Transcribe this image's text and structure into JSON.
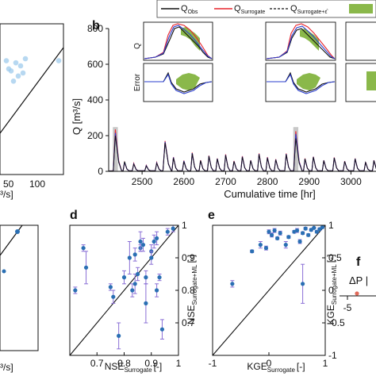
{
  "colors": {
    "obs": "#111111",
    "surrogate": "#e8242c",
    "surrogate_ml": "#2b3fcf",
    "error_band": "#8ab84a",
    "highlight": "#c8c8c8",
    "scatter_a": "#9fcbec",
    "point_blue": "#2a6fb3",
    "errorbar": "#8a6fd6",
    "point_red": "#e06a5a"
  },
  "legend": {
    "items": [
      {
        "label": "Q",
        "sub": "Obs",
        "style": "solid",
        "color_key": "obs"
      },
      {
        "label": "Q",
        "sub": "Surrogate",
        "style": "solid",
        "color_key": "surrogate"
      },
      {
        "label": "Q",
        "sub": "Surrogate+ε̂",
        "style": "dashed",
        "color_key": "obs"
      },
      {
        "label": "",
        "sub": "",
        "style": "patch",
        "color_key": "error_band"
      }
    ]
  },
  "panels": {
    "a": {
      "ylabel_partial": "...",
      "xticks": [
        "50",
        "100"
      ],
      "xlabel_partial": "³/s]"
    },
    "b": {
      "label": "b",
      "ylabel": "Q [m³/s]",
      "xlabel": "Cumulative time [hr]",
      "yticks": [
        "0",
        "200",
        "400",
        "600",
        "800"
      ],
      "xticks": [
        "2500",
        "2600",
        "2700",
        "2800",
        "2900",
        "3000"
      ],
      "inset_ylabel_top": "Q",
      "inset_ylabel_bottom": "Error"
    },
    "c": {
      "xlabel_partial": "³/s]"
    },
    "d": {
      "label": "d",
      "ylabel": "NSE",
      "ylabel_sub": "Surrogate+ML",
      "ylabel_unit": "[-]",
      "xlabel": "NSE",
      "xlabel_sub": "Surrogate",
      "xlabel_unit": "[-]",
      "yticks": [
        "0.7",
        "0.8",
        "0.9",
        "1"
      ],
      "xticks": [
        "0.7",
        "0.8",
        "0.9",
        "1"
      ]
    },
    "e": {
      "label": "e",
      "ylabel": "KGE",
      "ylabel_sub": "Surrogate+ML",
      "ylabel_unit": "[-]",
      "xlabel": "KGE",
      "xlabel_sub": "Surrogate",
      "xlabel_unit": "[-]",
      "yticks": [
        "-1",
        "-0.5",
        "0",
        "0.5",
        "1"
      ],
      "xticks": [
        "-1",
        "0",
        "1"
      ]
    },
    "f": {
      "label": "f",
      "text": "ΔP |",
      "xticks": [
        "-5"
      ]
    }
  },
  "chart_data": [
    {
      "panel": "b",
      "type": "line",
      "xlabel": "Cumulative time [hr]",
      "ylabel": "Q [m³/s]",
      "xlim": [
        2420,
        3060
      ],
      "ylim": [
        0,
        800
      ],
      "highlight_spans": [
        [
          2430,
          2442
        ],
        [
          2862,
          2874
        ]
      ],
      "peaks": [
        {
          "t": 2436,
          "obs": 200,
          "surrogate": 235,
          "ml": 215
        },
        {
          "t": 2458,
          "obs": 55,
          "surrogate": 50,
          "ml": 52
        },
        {
          "t": 2480,
          "obs": 40,
          "surrogate": 45,
          "ml": 42
        },
        {
          "t": 2510,
          "obs": 30,
          "surrogate": 34,
          "ml": 32
        },
        {
          "t": 2535,
          "obs": 45,
          "surrogate": 50,
          "ml": 47
        },
        {
          "t": 2555,
          "obs": 160,
          "surrogate": 170,
          "ml": 165
        },
        {
          "t": 2575,
          "obs": 75,
          "surrogate": 80,
          "ml": 78
        },
        {
          "t": 2600,
          "obs": 55,
          "surrogate": 60,
          "ml": 58
        },
        {
          "t": 2620,
          "obs": 100,
          "surrogate": 105,
          "ml": 102
        },
        {
          "t": 2640,
          "obs": 60,
          "surrogate": 62,
          "ml": 60
        },
        {
          "t": 2660,
          "obs": 85,
          "surrogate": 88,
          "ml": 86
        },
        {
          "t": 2680,
          "obs": 70,
          "surrogate": 72,
          "ml": 71
        },
        {
          "t": 2700,
          "obs": 90,
          "surrogate": 95,
          "ml": 92
        },
        {
          "t": 2720,
          "obs": 55,
          "surrogate": 58,
          "ml": 56
        },
        {
          "t": 2740,
          "obs": 80,
          "surrogate": 85,
          "ml": 82
        },
        {
          "t": 2760,
          "obs": 60,
          "surrogate": 62,
          "ml": 61
        },
        {
          "t": 2780,
          "obs": 95,
          "surrogate": 100,
          "ml": 97
        },
        {
          "t": 2800,
          "obs": 75,
          "surrogate": 80,
          "ml": 77
        },
        {
          "t": 2820,
          "obs": 65,
          "surrogate": 68,
          "ml": 66
        },
        {
          "t": 2845,
          "obs": 95,
          "surrogate": 100,
          "ml": 97
        },
        {
          "t": 2868,
          "obs": 185,
          "surrogate": 225,
          "ml": 210
        },
        {
          "t": 2890,
          "obs": 70,
          "surrogate": 72,
          "ml": 70
        },
        {
          "t": 2910,
          "obs": 80,
          "surrogate": 82,
          "ml": 81
        },
        {
          "t": 2935,
          "obs": 60,
          "surrogate": 62,
          "ml": 61
        },
        {
          "t": 2960,
          "obs": 75,
          "surrogate": 78,
          "ml": 76
        },
        {
          "t": 2985,
          "obs": 55,
          "surrogate": 57,
          "ml": 56
        },
        {
          "t": 3010,
          "obs": 70,
          "surrogate": 72,
          "ml": 71
        },
        {
          "t": 3035,
          "obs": 50,
          "surrogate": 52,
          "ml": 51
        },
        {
          "t": 3055,
          "obs": 60,
          "surrogate": 62,
          "ml": 61
        }
      ]
    },
    {
      "panel": "d",
      "type": "scatter",
      "xlabel": "NSE Surrogate [-]",
      "ylabel": "NSE Surrogate+ML [-]",
      "xlim": [
        0.6,
        1.0
      ],
      "ylim": [
        0.6,
        1.0
      ],
      "one_to_one": true,
      "points": [
        {
          "x": 0.62,
          "y": 0.8,
          "err": 0.01
        },
        {
          "x": 0.65,
          "y": 0.93,
          "err": 0.01
        },
        {
          "x": 0.66,
          "y": 0.87,
          "err": 0.05
        },
        {
          "x": 0.75,
          "y": 0.81,
          "err": 0.01
        },
        {
          "x": 0.76,
          "y": 0.78,
          "err": 0.02
        },
        {
          "x": 0.78,
          "y": 0.66,
          "err": 0.04
        },
        {
          "x": 0.8,
          "y": 0.84,
          "err": 0.02
        },
        {
          "x": 0.82,
          "y": 0.9,
          "err": 0.05
        },
        {
          "x": 0.83,
          "y": 0.8,
          "err": 0.02
        },
        {
          "x": 0.84,
          "y": 0.82,
          "err": 0.03
        },
        {
          "x": 0.84,
          "y": 0.91,
          "err": 0.02
        },
        {
          "x": 0.85,
          "y": 0.85,
          "err": 0.02
        },
        {
          "x": 0.86,
          "y": 0.93,
          "err": 0.01
        },
        {
          "x": 0.86,
          "y": 0.95,
          "err": 0.03
        },
        {
          "x": 0.87,
          "y": 0.94,
          "err": 0.02
        },
        {
          "x": 0.88,
          "y": 0.76,
          "err": 0.06
        },
        {
          "x": 0.88,
          "y": 0.84,
          "err": 0.02
        },
        {
          "x": 0.9,
          "y": 0.92,
          "err": 0.02
        },
        {
          "x": 0.9,
          "y": 0.9,
          "err": 0.02
        },
        {
          "x": 0.91,
          "y": 0.95,
          "err": 0.02
        },
        {
          "x": 0.92,
          "y": 0.96,
          "err": 0.02
        },
        {
          "x": 0.92,
          "y": 0.8,
          "err": 0.02
        },
        {
          "x": 0.93,
          "y": 0.84,
          "err": 0.01
        },
        {
          "x": 0.94,
          "y": 0.68,
          "err": 0.03
        },
        {
          "x": 0.96,
          "y": 0.98,
          "err": 0.01
        },
        {
          "x": 0.98,
          "y": 0.99,
          "err": 0.01
        }
      ]
    },
    {
      "panel": "e",
      "type": "scatter",
      "xlabel": "KGE Surrogate [-]",
      "ylabel": "KGE Surrogate+ML [-]",
      "xlim": [
        -1.0,
        1.0
      ],
      "ylim": [
        -1.0,
        1.0
      ],
      "one_to_one": true,
      "points": [
        {
          "x": -0.65,
          "y": 0.1,
          "err": 0.05
        },
        {
          "x": -0.3,
          "y": 0.6,
          "err": 0.02
        },
        {
          "x": -0.15,
          "y": 0.7,
          "err": 0.05
        },
        {
          "x": -0.05,
          "y": 0.65,
          "err": 0.03
        },
        {
          "x": 0.0,
          "y": 0.9,
          "err": 0.03
        },
        {
          "x": 0.05,
          "y": 0.85,
          "err": 0.03
        },
        {
          "x": 0.1,
          "y": 0.92,
          "err": 0.03
        },
        {
          "x": 0.15,
          "y": 0.8,
          "err": 0.02
        },
        {
          "x": 0.2,
          "y": 0.88,
          "err": 0.03
        },
        {
          "x": 0.3,
          "y": 0.7,
          "err": 0.05
        },
        {
          "x": 0.35,
          "y": 0.82,
          "err": 0.02
        },
        {
          "x": 0.45,
          "y": 0.9,
          "err": 0.02
        },
        {
          "x": 0.5,
          "y": 0.92,
          "err": 0.03
        },
        {
          "x": 0.55,
          "y": 0.75,
          "err": 0.03
        },
        {
          "x": 0.6,
          "y": 0.1,
          "err": 0.3
        },
        {
          "x": 0.6,
          "y": 0.88,
          "err": 0.02
        },
        {
          "x": 0.65,
          "y": 0.95,
          "err": 0.02
        },
        {
          "x": 0.7,
          "y": 0.85,
          "err": 0.02
        },
        {
          "x": 0.75,
          "y": 0.93,
          "err": 0.02
        },
        {
          "x": 0.8,
          "y": 0.96,
          "err": 0.01
        },
        {
          "x": 0.85,
          "y": 0.9,
          "err": 0.02
        },
        {
          "x": 0.9,
          "y": 0.94,
          "err": 0.02
        },
        {
          "x": 0.95,
          "y": 0.97,
          "err": 0.01
        }
      ]
    },
    {
      "panel": "a",
      "type": "scatter",
      "partial": true,
      "points": [
        {
          "x": 10,
          "y": 110
        },
        {
          "x": 20,
          "y": 100
        },
        {
          "x": 30,
          "y": 108
        },
        {
          "x": 35,
          "y": 95
        },
        {
          "x": 40,
          "y": 105
        },
        {
          "x": 45,
          "y": 98
        },
        {
          "x": 25,
          "y": 90
        },
        {
          "x": 15,
          "y": 102
        },
        {
          "x": 50,
          "y": 112
        },
        {
          "x": 120,
          "y": 110
        }
      ]
    }
  ]
}
